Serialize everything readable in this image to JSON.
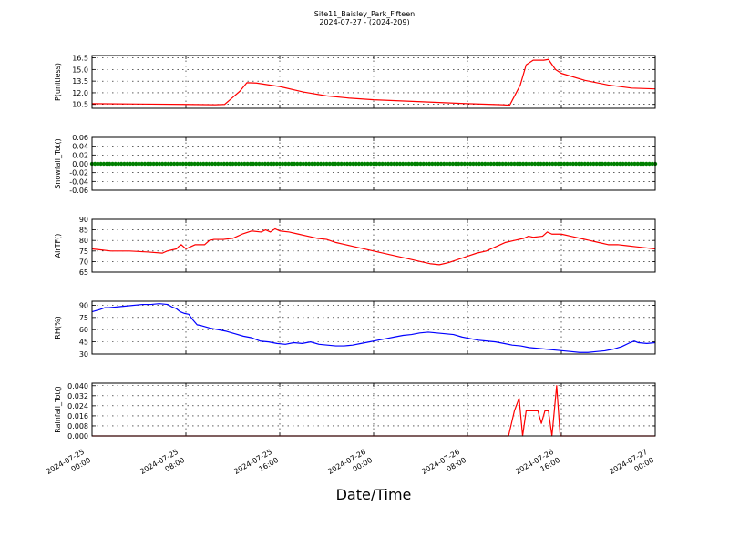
{
  "header": {
    "title_line1": "Site11_Baisley_Park_Fifteen",
    "title_line2": "2024-07-27 - (2024-209)"
  },
  "x_axis_label": "Date/Time",
  "chart_data": [
    {
      "type": "line",
      "ylabel": "P(unitless)",
      "ylim": [
        10.0,
        16.8
      ],
      "yticks": [
        10.5,
        12.0,
        13.5,
        15.0,
        16.5
      ],
      "ytick_labels": [
        "10.5",
        "12.0",
        "13.5",
        "15.0",
        "16.5"
      ],
      "grid": true,
      "series": [
        {
          "color": "#ff0000",
          "points": [
            [
              0,
              10.6
            ],
            [
              4,
              10.55
            ],
            [
              8,
              10.5
            ],
            [
              10.5,
              10.45
            ],
            [
              11.3,
              10.5
            ],
            [
              12.6,
              12.2
            ],
            [
              13.2,
              13.3
            ],
            [
              14,
              13.25
            ],
            [
              16,
              12.8
            ],
            [
              18,
              12.1
            ],
            [
              20,
              11.6
            ],
            [
              22,
              11.3
            ],
            [
              24,
              11.1
            ],
            [
              28,
              10.85
            ],
            [
              32,
              10.6
            ],
            [
              35,
              10.45
            ],
            [
              35.6,
              10.4
            ],
            [
              36.5,
              13.0
            ],
            [
              37,
              15.6
            ],
            [
              37.6,
              16.2
            ],
            [
              38.5,
              16.2
            ],
            [
              38.9,
              16.3
            ],
            [
              39.5,
              15.0
            ],
            [
              40,
              14.5
            ],
            [
              42,
              13.6
            ],
            [
              44,
              13.0
            ],
            [
              46,
              12.6
            ],
            [
              48,
              12.5
            ]
          ]
        }
      ]
    },
    {
      "type": "scatter",
      "ylabel": "Snowfall_Tot()",
      "ylim": [
        -0.06,
        0.06
      ],
      "yticks": [
        -0.06,
        -0.04,
        -0.02,
        0.0,
        0.02,
        0.04,
        0.06
      ],
      "ytick_labels": [
        "-0.06",
        "-0.04",
        "-0.02",
        "0.00",
        "0.02",
        "0.04",
        "0.06"
      ],
      "grid": true,
      "series": [
        {
          "color": "#008000",
          "constant_value": 0.0,
          "interval_hours": 0.25,
          "x_range": [
            0,
            48
          ]
        }
      ]
    },
    {
      "type": "line",
      "ylabel": "AirTF()",
      "ylim": [
        65,
        90
      ],
      "yticks": [
        65,
        70,
        75,
        80,
        85,
        90
      ],
      "ytick_labels": [
        "65",
        "70",
        "75",
        "80",
        "85",
        "90"
      ],
      "grid": true,
      "series": [
        {
          "color": "#ff0000",
          "points": [
            [
              0,
              76
            ],
            [
              1,
              75.5
            ],
            [
              2,
              75
            ],
            [
              4,
              75
            ],
            [
              6,
              74.5
            ],
            [
              7.5,
              74
            ],
            [
              8,
              75
            ],
            [
              8.5,
              75.5
            ],
            [
              9,
              76
            ],
            [
              9.2,
              77
            ],
            [
              9.5,
              78
            ],
            [
              10,
              76
            ],
            [
              11,
              78
            ],
            [
              12,
              78
            ],
            [
              12.5,
              80
            ],
            [
              13,
              80.5
            ],
            [
              14,
              80.5
            ],
            [
              15,
              81
            ],
            [
              15.5,
              82
            ],
            [
              16,
              83
            ],
            [
              17,
              84.5
            ],
            [
              18,
              84
            ],
            [
              18.5,
              85
            ],
            [
              19,
              84
            ],
            [
              19.5,
              85.5
            ],
            [
              20,
              84.5
            ],
            [
              21,
              84
            ],
            [
              22,
              83
            ],
            [
              23,
              82
            ],
            [
              24,
              81
            ],
            [
              25,
              80.5
            ],
            [
              26,
              79
            ],
            [
              27,
              78
            ],
            [
              28,
              77
            ],
            [
              30,
              75
            ],
            [
              32,
              73
            ],
            [
              34,
              71
            ],
            [
              35,
              70
            ],
            [
              36,
              69
            ],
            [
              37,
              68.5
            ],
            [
              38,
              69.5
            ],
            [
              39,
              71
            ],
            [
              40,
              72.5
            ],
            [
              41,
              74
            ],
            [
              42,
              75
            ],
            [
              42.5,
              76
            ],
            [
              43,
              77
            ],
            [
              44,
              79
            ],
            [
              45,
              80
            ],
            [
              46,
              81
            ],
            [
              46.5,
              82
            ],
            [
              47,
              81.5
            ],
            [
              48,
              82
            ],
            [
              48.5,
              84
            ],
            [
              49,
              83
            ],
            [
              50,
              83
            ],
            [
              51,
              82
            ],
            [
              52,
              81
            ],
            [
              53,
              80
            ],
            [
              54,
              79
            ],
            [
              55,
              78
            ],
            [
              56,
              78
            ],
            [
              57,
              77.5
            ],
            [
              58,
              77
            ],
            [
              59,
              76.5
            ],
            [
              60,
              76
            ]
          ]
        }
      ],
      "x_scale_total": 60
    },
    {
      "type": "line",
      "ylabel": "RH(%)",
      "ylim": [
        30,
        95
      ],
      "yticks": [
        30,
        45,
        60,
        75,
        90
      ],
      "ytick_labels": [
        "30",
        "45",
        "60",
        "75",
        "90"
      ],
      "grid": true,
      "series": [
        {
          "color": "#0000ff",
          "points": [
            [
              0,
              82
            ],
            [
              1,
              85
            ],
            [
              1.5,
              87
            ],
            [
              2,
              87
            ],
            [
              3,
              88
            ],
            [
              4,
              89
            ],
            [
              6,
              91
            ],
            [
              7,
              91
            ],
            [
              8,
              92
            ],
            [
              9,
              91
            ],
            [
              9.5,
              88
            ],
            [
              10,
              86
            ],
            [
              10.5,
              82
            ],
            [
              11,
              80
            ],
            [
              11.5,
              79
            ],
            [
              12,
              72
            ],
            [
              12.5,
              66
            ],
            [
              13,
              65
            ],
            [
              14,
              62
            ],
            [
              15,
              60
            ],
            [
              16,
              58
            ],
            [
              17,
              55
            ],
            [
              18,
              52
            ],
            [
              19,
              50
            ],
            [
              20,
              46
            ],
            [
              21,
              45
            ],
            [
              22,
              43
            ],
            [
              23,
              42
            ],
            [
              24,
              44
            ],
            [
              25,
              43
            ],
            [
              26,
              45
            ],
            [
              27,
              42
            ],
            [
              28,
              41
            ],
            [
              29,
              40
            ],
            [
              30,
              40
            ],
            [
              31,
              41
            ],
            [
              32,
              43
            ],
            [
              33,
              45
            ],
            [
              34,
              47
            ],
            [
              35,
              49
            ],
            [
              36,
              51
            ],
            [
              37,
              53
            ],
            [
              38,
              54
            ],
            [
              39,
              56
            ],
            [
              40,
              57
            ],
            [
              41,
              56
            ],
            [
              42,
              55
            ],
            [
              43,
              54
            ],
            [
              44,
              51
            ],
            [
              45,
              49
            ],
            [
              46,
              47
            ],
            [
              47,
              46
            ],
            [
              48,
              45
            ],
            [
              49,
              43
            ],
            [
              50,
              41
            ],
            [
              51,
              40
            ],
            [
              52,
              38
            ],
            [
              53,
              37
            ],
            [
              54,
              36
            ],
            [
              55,
              35
            ],
            [
              56,
              34
            ],
            [
              57,
              33
            ],
            [
              58,
              32
            ],
            [
              59,
              32
            ],
            [
              60,
              33
            ],
            [
              61,
              34
            ],
            [
              62,
              36
            ],
            [
              63,
              39
            ],
            [
              64,
              44
            ],
            [
              64.5,
              46
            ],
            [
              65,
              44
            ],
            [
              66,
              43
            ],
            [
              67,
              44
            ]
          ]
        }
      ],
      "x_scale_total": 67
    },
    {
      "type": "line",
      "ylabel": "Rainfall_Tot()",
      "ylim": [
        0.0,
        0.042
      ],
      "yticks": [
        0.0,
        0.008,
        0.016,
        0.024,
        0.032,
        0.04
      ],
      "ytick_labels": [
        "0.000",
        "0.008",
        "0.016",
        "0.024",
        "0.032",
        "0.040"
      ],
      "grid": true,
      "series": [
        {
          "color": "#ff0000",
          "points": [
            [
              0,
              0
            ],
            [
              35.5,
              0
            ],
            [
              36,
              0.02
            ],
            [
              36.4,
              0.03
            ],
            [
              36.7,
              0
            ],
            [
              37,
              0.02
            ],
            [
              38,
              0.02
            ],
            [
              38.3,
              0.01
            ],
            [
              38.6,
              0.02
            ],
            [
              38.9,
              0.02
            ],
            [
              39.2,
              0
            ],
            [
              39.6,
              0.04
            ],
            [
              39.9,
              0
            ],
            [
              48,
              0
            ]
          ]
        }
      ]
    }
  ],
  "x_ticks": [
    {
      "line1": "2024-07-25",
      "line2": "00:00"
    },
    {
      "line1": "2024-07-25",
      "line2": "08:00"
    },
    {
      "line1": "2024-07-25",
      "line2": "16:00"
    },
    {
      "line1": "2024-07-26",
      "line2": "00:00"
    },
    {
      "line1": "2024-07-26",
      "line2": "08:00"
    },
    {
      "line1": "2024-07-26",
      "line2": "16:00"
    },
    {
      "line1": "2024-07-27",
      "line2": "00:00"
    }
  ]
}
